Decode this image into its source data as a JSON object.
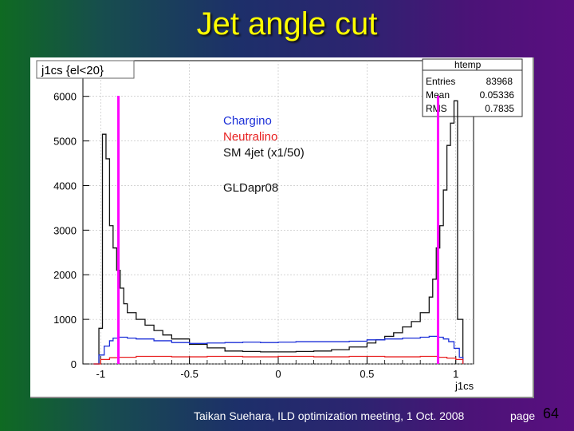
{
  "slide": {
    "title": "Jet angle cut",
    "footer": "Taikan Suehara, ILD optimization meeting, 1 Oct. 2008",
    "page_label": "page",
    "page_number": "64"
  },
  "colors": {
    "chargino": "#1b2fd8",
    "neutralino": "#e82020",
    "sm": "#111111",
    "cut": "#ff00ff",
    "title_text": "#ffff00"
  },
  "chart_data": {
    "type": "line",
    "title": "j1cs {el<20}",
    "xlabel": "j1cs",
    "ylabel": "",
    "xlim": [
      -1.1,
      1.1
    ],
    "ylim": [
      0,
      6800
    ],
    "x_ticks": [
      -1,
      -0.5,
      0,
      0.5,
      1
    ],
    "x_tick_labels": [
      "-1",
      "-0.5",
      "0",
      "0.5",
      "1"
    ],
    "y_ticks": [
      0,
      1000,
      2000,
      3000,
      4000,
      5000,
      6000
    ],
    "y_tick_labels": [
      "0",
      "1000",
      "2000",
      "3000",
      "4000",
      "5000",
      "6000"
    ],
    "legend": [
      "Chargino",
      "Neutralino",
      "SM 4jet (x1/50)",
      "GLDapr08"
    ],
    "stats": {
      "name": "htemp",
      "rows": [
        {
          "label": "Entries",
          "value": "83968"
        },
        {
          "label": "Mean",
          "value": "0.05336"
        },
        {
          "label": "RMS",
          "value": "0.7835"
        }
      ]
    },
    "cut_lines": [
      -0.9,
      0.9
    ],
    "series": [
      {
        "name": "SM 4jet (x1/50)",
        "x": [
          -1.04,
          -1.01,
          -0.99,
          -0.97,
          -0.95,
          -0.93,
          -0.91,
          -0.89,
          -0.87,
          -0.85,
          -0.8,
          -0.75,
          -0.7,
          -0.65,
          -0.6,
          -0.5,
          -0.4,
          -0.3,
          -0.2,
          -0.1,
          0,
          0.1,
          0.2,
          0.3,
          0.4,
          0.5,
          0.55,
          0.6,
          0.65,
          0.7,
          0.75,
          0.8,
          0.85,
          0.87,
          0.89,
          0.91,
          0.93,
          0.95,
          0.97,
          0.99,
          1.01,
          1.04
        ],
        "values": [
          0,
          800,
          5150,
          4600,
          3100,
          2600,
          2100,
          1700,
          1350,
          1150,
          1000,
          870,
          750,
          650,
          560,
          440,
          360,
          290,
          280,
          270,
          270,
          280,
          290,
          320,
          380,
          470,
          540,
          620,
          700,
          830,
          950,
          1150,
          1500,
          1900,
          2600,
          3100,
          3900,
          4900,
          5400,
          5900,
          1000,
          0
        ]
      },
      {
        "name": "Chargino",
        "x": [
          -1.04,
          -1.01,
          -0.98,
          -0.95,
          -0.93,
          -0.9,
          -0.85,
          -0.8,
          -0.7,
          -0.6,
          -0.5,
          -0.4,
          -0.3,
          -0.2,
          -0.1,
          0,
          0.1,
          0.2,
          0.3,
          0.4,
          0.5,
          0.6,
          0.7,
          0.8,
          0.85,
          0.9,
          0.93,
          0.96,
          0.99,
          1.02,
          1.04
        ],
        "values": [
          0,
          200,
          400,
          520,
          580,
          600,
          580,
          560,
          520,
          480,
          460,
          470,
          480,
          490,
          480,
          490,
          500,
          500,
          500,
          510,
          540,
          560,
          580,
          600,
          620,
          600,
          560,
          500,
          350,
          150,
          0
        ]
      },
      {
        "name": "Neutralino",
        "x": [
          -1.04,
          -1.0,
          -0.95,
          -0.9,
          -0.8,
          -0.6,
          -0.4,
          -0.2,
          0,
          0.2,
          0.4,
          0.6,
          0.8,
          0.9,
          0.95,
          1.0,
          1.04
        ],
        "values": [
          0,
          100,
          140,
          150,
          170,
          160,
          170,
          160,
          170,
          160,
          170,
          160,
          170,
          150,
          130,
          100,
          0
        ]
      }
    ]
  }
}
